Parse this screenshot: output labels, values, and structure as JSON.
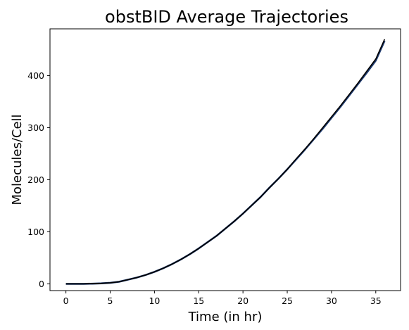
{
  "chart_data": {
    "type": "line",
    "title": "obstBID Average Trajectories",
    "xlabel": "Time (in hr)",
    "ylabel": "Molecules/Cell",
    "xlim": [
      -1.8,
      37.8
    ],
    "ylim": [
      -13,
      490
    ],
    "x_ticks": [
      0,
      5,
      10,
      15,
      20,
      25,
      30,
      35
    ],
    "y_ticks": [
      0,
      100,
      200,
      300,
      400
    ],
    "grid": false,
    "legend": "none",
    "series": [
      {
        "color": "#1f3b6f",
        "x": [
          0,
          1,
          2,
          3,
          4,
          5,
          6,
          7,
          8,
          9,
          10,
          11,
          12,
          13,
          14,
          15,
          16,
          17,
          18,
          19,
          20,
          21,
          22,
          23,
          24,
          25,
          26,
          27,
          28,
          29,
          30,
          31,
          32,
          33,
          34,
          35,
          36
        ],
        "y": [
          0,
          0,
          0,
          0.3,
          0.9,
          2,
          4,
          8,
          12,
          17,
          23,
          30,
          38,
          47,
          57,
          68,
          80,
          92,
          106,
          120,
          135,
          151,
          167,
          185,
          202,
          220,
          239,
          258,
          278,
          298,
          319,
          340,
          362,
          384,
          406,
          429,
          467
        ]
      },
      {
        "color": "#000000",
        "x": [
          0,
          1,
          2,
          3,
          4,
          5,
          6,
          7,
          8,
          9,
          10,
          11,
          12,
          13,
          14,
          15,
          16,
          17,
          18,
          19,
          20,
          21,
          22,
          23,
          24,
          25,
          26,
          27,
          28,
          29,
          30,
          31,
          32,
          33,
          34,
          35,
          36
        ],
        "y": [
          0,
          0,
          0,
          0.3,
          0.9,
          2,
          4,
          8,
          12,
          17,
          23,
          30,
          38,
          47,
          57,
          68,
          80,
          92,
          106,
          120,
          135,
          151,
          167,
          185,
          202,
          220,
          240,
          259,
          279,
          300,
          321,
          342,
          364,
          386,
          409,
          432,
          470
        ]
      }
    ]
  }
}
